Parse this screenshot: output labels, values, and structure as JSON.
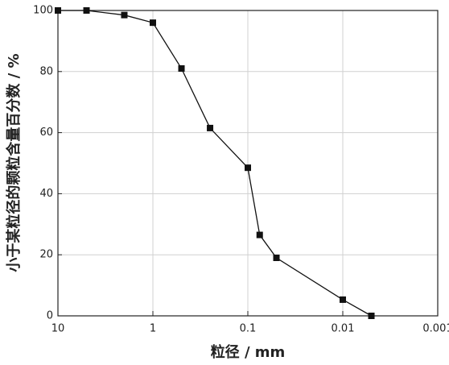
{
  "chart_data": {
    "type": "line",
    "xlabel": "粒径 / mm",
    "ylabel": "小于某粒径的颗粒含量百分数 / %",
    "x": [
      10,
      5,
      2,
      1,
      0.5,
      0.25,
      0.1,
      0.075,
      0.05,
      0.01,
      0.005
    ],
    "series": [
      {
        "color": "#111111",
        "values": [
          100,
          100,
          98.5,
          96,
          81,
          61.5,
          48.5,
          26.5,
          19,
          5.3,
          0
        ]
      }
    ],
    "xscale": "log",
    "xlim": [
      10,
      0.001
    ],
    "xticks": [
      10,
      1,
      0.1,
      0.01,
      0.001
    ],
    "ylim": [
      0,
      100
    ],
    "yticks": [
      0,
      20,
      40,
      60,
      80,
      100
    ],
    "grid": true
  }
}
